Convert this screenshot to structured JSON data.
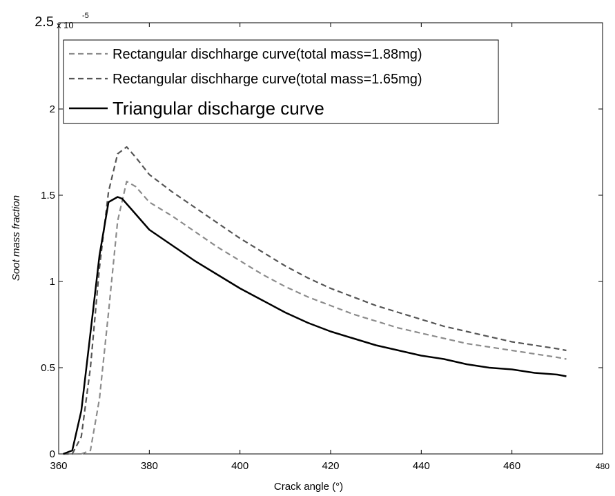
{
  "chart_data": {
    "type": "line",
    "title": "",
    "xlabel": "Crack angle (°)",
    "ylabel": "Soot mass fraction",
    "y_exponent_label": "x 10",
    "y_exponent": "-5",
    "xlim": [
      360,
      480
    ],
    "ylim": [
      0,
      2.5
    ],
    "x_ticks": [
      360,
      380,
      400,
      420,
      440,
      460,
      480
    ],
    "y_ticks": [
      0,
      0.5,
      1,
      1.5,
      2,
      2.5
    ],
    "x_tick_labels": [
      "360",
      "380",
      "400",
      "420",
      "440",
      "460",
      "480"
    ],
    "y_tick_labels": [
      "0",
      "0.5",
      "1",
      "1.5",
      "2",
      "2.5"
    ],
    "grid": false,
    "legend_position": "top-left",
    "series": [
      {
        "name": "Rectangular dischharge curve(total mass=1.88mg)",
        "color": "#8c8c8c",
        "dash": "dashed",
        "x": [
          361,
          363,
          365,
          367,
          369,
          371,
          373,
          375,
          377,
          380,
          385,
          390,
          395,
          400,
          405,
          410,
          415,
          420,
          425,
          430,
          435,
          440,
          445,
          450,
          455,
          460,
          465,
          470,
          472
        ],
        "y": [
          0,
          0,
          0,
          0.02,
          0.32,
          0.82,
          1.35,
          1.58,
          1.55,
          1.46,
          1.38,
          1.29,
          1.2,
          1.12,
          1.04,
          0.97,
          0.91,
          0.86,
          0.81,
          0.77,
          0.73,
          0.7,
          0.67,
          0.64,
          0.62,
          0.6,
          0.58,
          0.56,
          0.55
        ]
      },
      {
        "name": "Rectangular dischharge curve(total mass=1.65mg)",
        "color": "#555555",
        "dash": "dashed",
        "x": [
          361,
          363,
          365,
          367,
          369,
          371,
          373,
          375,
          377,
          380,
          385,
          390,
          395,
          400,
          405,
          410,
          415,
          420,
          425,
          430,
          435,
          440,
          445,
          450,
          455,
          460,
          465,
          470,
          472
        ],
        "y": [
          0,
          0,
          0.1,
          0.5,
          1.08,
          1.52,
          1.74,
          1.78,
          1.72,
          1.62,
          1.52,
          1.43,
          1.34,
          1.25,
          1.17,
          1.09,
          1.02,
          0.96,
          0.91,
          0.86,
          0.82,
          0.78,
          0.74,
          0.71,
          0.68,
          0.65,
          0.63,
          0.61,
          0.6
        ]
      },
      {
        "name": "Triangular discharge curve",
        "color": "#000000",
        "dash": "solid",
        "x": [
          361,
          363,
          365,
          367,
          369,
          371,
          373,
          374,
          376,
          380,
          385,
          390,
          395,
          400,
          405,
          410,
          415,
          420,
          425,
          430,
          435,
          440,
          445,
          450,
          455,
          460,
          465,
          470,
          472
        ],
        "y": [
          0,
          0.02,
          0.25,
          0.7,
          1.15,
          1.46,
          1.49,
          1.48,
          1.42,
          1.3,
          1.21,
          1.12,
          1.04,
          0.96,
          0.89,
          0.82,
          0.76,
          0.71,
          0.67,
          0.63,
          0.6,
          0.57,
          0.55,
          0.52,
          0.5,
          0.49,
          0.47,
          0.46,
          0.45
        ]
      }
    ]
  }
}
